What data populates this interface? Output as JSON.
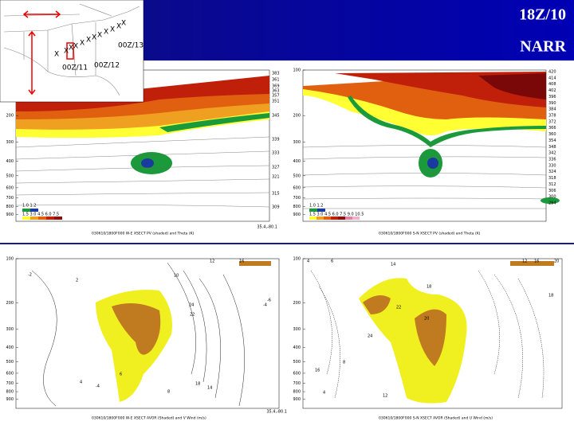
{
  "header": {
    "title": "18Z/10",
    "subtitle": "NARR"
  },
  "map": {
    "labels": [
      "00Z/13",
      "00Z/11",
      "00Z/12"
    ],
    "track_marks": [
      "X",
      "X",
      "X",
      "X",
      "X",
      "X",
      "X",
      "X",
      "X",
      "X",
      "X",
      "X"
    ]
  },
  "panels": [
    {
      "pressure_labels": [
        200,
        300,
        400,
        500,
        600,
        700,
        800,
        900
      ],
      "theta_labels": [
        383,
        361,
        369,
        363,
        357,
        351,
        345,
        339,
        333,
        327,
        321,
        315,
        309
      ],
      "legend": [
        "1.0 1.2",
        "1.5 3.0 4.5 6.0 7.5"
      ],
      "corner": "35.4,-80.1",
      "caption": "030610/1800F000 W-E XSECT PV (shaded) and Theta (K)"
    },
    {
      "pressure_labels": [
        100,
        200,
        300,
        400,
        500,
        600,
        700,
        800,
        900
      ],
      "theta_labels": [
        420,
        414,
        408,
        402,
        396,
        390,
        384,
        378,
        372,
        366,
        360,
        354,
        348,
        342,
        336,
        330,
        324,
        318,
        312,
        306,
        300,
        294
      ],
      "legend": [
        "1.0 1.2",
        "1.5 3.0 4.5 6.0 7.5 9.0 10.5"
      ],
      "caption": "030610/1800F000 S-N XSECT PV (shaded) and Theta (K)"
    },
    {
      "pressure_labels": [
        100,
        200,
        300,
        400,
        500,
        600,
        700,
        800,
        900
      ],
      "contour_labels": [
        "12",
        "16",
        "10",
        "-2",
        "2",
        "24",
        "22",
        "-4",
        "-6",
        "18",
        "14",
        "8",
        "6",
        "4",
        "-4"
      ],
      "corner": "35.4,-80.1",
      "caption": "030610/1800F000 W-E XSECT AVOR (Shaded) and V Wind (m/s)"
    },
    {
      "pressure_labels": [
        100,
        200,
        300,
        400,
        500,
        600,
        700,
        800,
        900
      ],
      "contour_labels": [
        "4",
        "6",
        "14",
        "12",
        "16",
        "20",
        "18",
        "22",
        "24",
        "20",
        "8",
        "16",
        "18",
        "4",
        "12"
      ],
      "caption": "030610/1800F000 S-N XSECT AVOR (Shaded) and U Wind (m/s)"
    }
  ]
}
